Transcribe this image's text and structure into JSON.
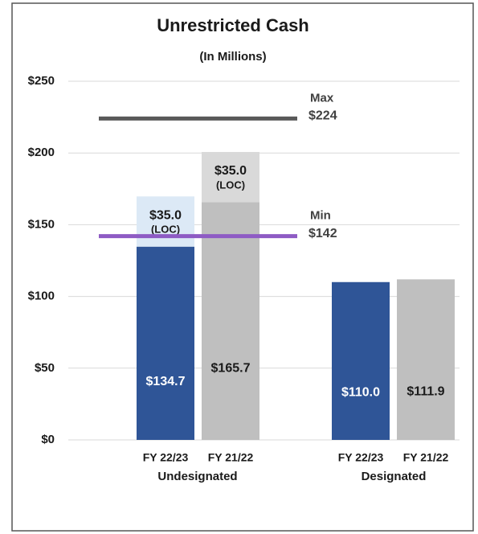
{
  "chart_data": {
    "type": "bar",
    "title": "Unrestricted Cash",
    "subtitle": "(In Millions)",
    "categories": [
      "FY 22/23",
      "FY 21/22",
      "FY 22/23",
      "FY 21/22"
    ],
    "groups": [
      "Undesignated",
      "Designated"
    ],
    "series": [
      {
        "colors": [
          "#2f5597",
          "#bfbfbf",
          "#2f5597",
          "#bfbfbf"
        ],
        "label_colors": [
          "#ffffff",
          "#1a1a1a",
          "#ffffff",
          "#1a1a1a"
        ],
        "values": [
          134.7,
          165.7,
          110.0,
          111.9
        ],
        "value_labels": [
          "$134.7",
          "$165.7",
          "$110.0",
          "$111.9"
        ]
      },
      {
        "colors": [
          "#dce9f6",
          "#d9d9d9",
          null,
          null
        ],
        "values": [
          35.0,
          35.0,
          null,
          null
        ],
        "value_labels": [
          "$35.0",
          "$35.0",
          null,
          null
        ],
        "value_notes": [
          "(LOC)",
          "(LOC)",
          null,
          null
        ]
      }
    ],
    "reference_lines": [
      {
        "name": "Max",
        "value": 224,
        "label": "$224",
        "color": "#595959"
      },
      {
        "name": "Min",
        "value": 142,
        "label": "$142",
        "color": "#8e5bc4"
      }
    ],
    "ylim": [
      0,
      250
    ],
    "yticks": [
      {
        "value": 0,
        "label": "$0"
      },
      {
        "value": 50,
        "label": "$50"
      },
      {
        "value": 100,
        "label": "$100"
      },
      {
        "value": 150,
        "label": "$150"
      },
      {
        "value": 200,
        "label": "$200"
      },
      {
        "value": 250,
        "label": "$250"
      }
    ],
    "grid": true
  }
}
